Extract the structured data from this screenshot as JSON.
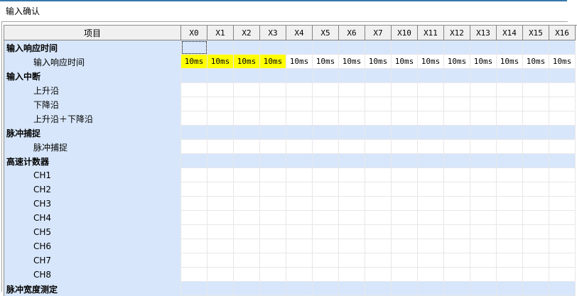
{
  "window": {
    "title": "输入确认"
  },
  "table": {
    "item_column_header": "项目",
    "columns": [
      "X0",
      "X1",
      "X2",
      "X3",
      "X4",
      "X5",
      "X6",
      "X7",
      "X10",
      "X11",
      "X12",
      "X13",
      "X14",
      "X15",
      "X16"
    ],
    "rows": [
      {
        "label": "输入响应时间",
        "type": "category",
        "cells": []
      },
      {
        "label": "输入响应时间",
        "type": "item",
        "cells": [
          "10ms",
          "10ms",
          "10ms",
          "10ms",
          "10ms",
          "10ms",
          "10ms",
          "10ms",
          "10ms",
          "10ms",
          "10ms",
          "10ms",
          "10ms",
          "10ms",
          "10ms"
        ],
        "highlight_cols": [
          0,
          1,
          2,
          3
        ]
      },
      {
        "label": "输入中断",
        "type": "category",
        "cells": []
      },
      {
        "label": "上升沿",
        "type": "item",
        "cells": []
      },
      {
        "label": "下降沿",
        "type": "item",
        "cells": []
      },
      {
        "label": "上升沿＋下降沿",
        "type": "item",
        "cells": []
      },
      {
        "label": "脉冲捕捉",
        "type": "category",
        "cells": []
      },
      {
        "label": "脉冲捕捉",
        "type": "item",
        "cells": []
      },
      {
        "label": "高速计数器",
        "type": "category",
        "cells": []
      },
      {
        "label": "CH1",
        "type": "item",
        "cells": []
      },
      {
        "label": "CH2",
        "type": "item",
        "cells": []
      },
      {
        "label": "CH3",
        "type": "item",
        "cells": []
      },
      {
        "label": "CH4",
        "type": "item",
        "cells": []
      },
      {
        "label": "CH5",
        "type": "item",
        "cells": []
      },
      {
        "label": "CH6",
        "type": "item",
        "cells": []
      },
      {
        "label": "CH7",
        "type": "item",
        "cells": []
      },
      {
        "label": "CH8",
        "type": "item",
        "cells": []
      },
      {
        "label": "脉冲宽度测定",
        "type": "category",
        "cells": []
      }
    ],
    "selected_cell": {
      "row_index": 0,
      "col_index": 0
    }
  },
  "colors": {
    "top_accent_line": "#3878ad",
    "category_row_bg": "#d7e6fa",
    "highlight_cell_bg": "#ffff00",
    "header_bg": "#f0f0f0",
    "header_border": "#828282",
    "grid_line": "#e7e7ea",
    "grid_border": "#8c8c8c",
    "panel_border": "#a6a6a6"
  }
}
